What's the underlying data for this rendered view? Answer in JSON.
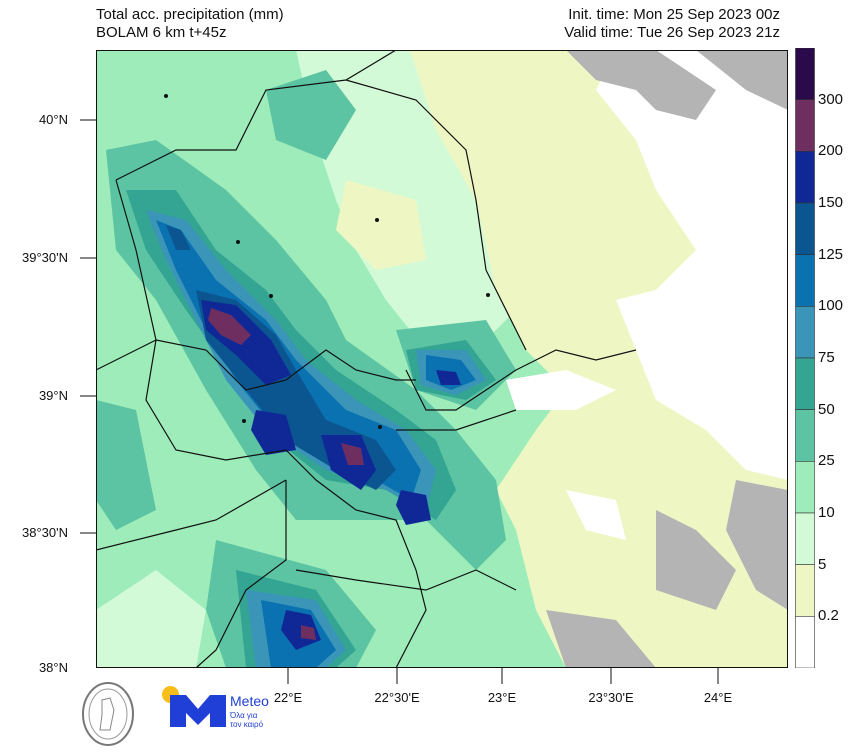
{
  "header": {
    "title": "Total acc. precipitation (mm)",
    "subtitle": "BOLAM 6 km t+45z",
    "init_time": "Init. time: Mon 25 Sep 2023 00z",
    "valid_time": "Valid time: Tue 26 Sep 2023 21z"
  },
  "axes": {
    "lat_labels": [
      "40°N",
      "39°30'N",
      "39°N",
      "38°30'N",
      "38°N"
    ],
    "lon_labels": [
      "22°E",
      "22°30'E",
      "23°E",
      "23°30'E",
      "24°E"
    ]
  },
  "colorbar": {
    "labels": [
      "300",
      "200",
      "150",
      "125",
      "100",
      "75",
      "50",
      "25",
      "10",
      "5",
      "0.2"
    ],
    "colors": [
      "#2a0a4a",
      "#6e2f60",
      "#0f2896",
      "#0b5690",
      "#0a72b0",
      "#3a95b8",
      "#34a592",
      "#5cc4a2",
      "#9eecba",
      "#d3fad6",
      "#eef7c4",
      "#ffffff"
    ]
  },
  "map_colors": {
    "outside_domain_land": "#b4b4b4",
    "sea": "#ffffff"
  },
  "logos": {
    "meteo_name": "Meteo",
    "meteo_tagline_1": "Όλα για",
    "meteo_tagline_2": "τον καιρό"
  }
}
